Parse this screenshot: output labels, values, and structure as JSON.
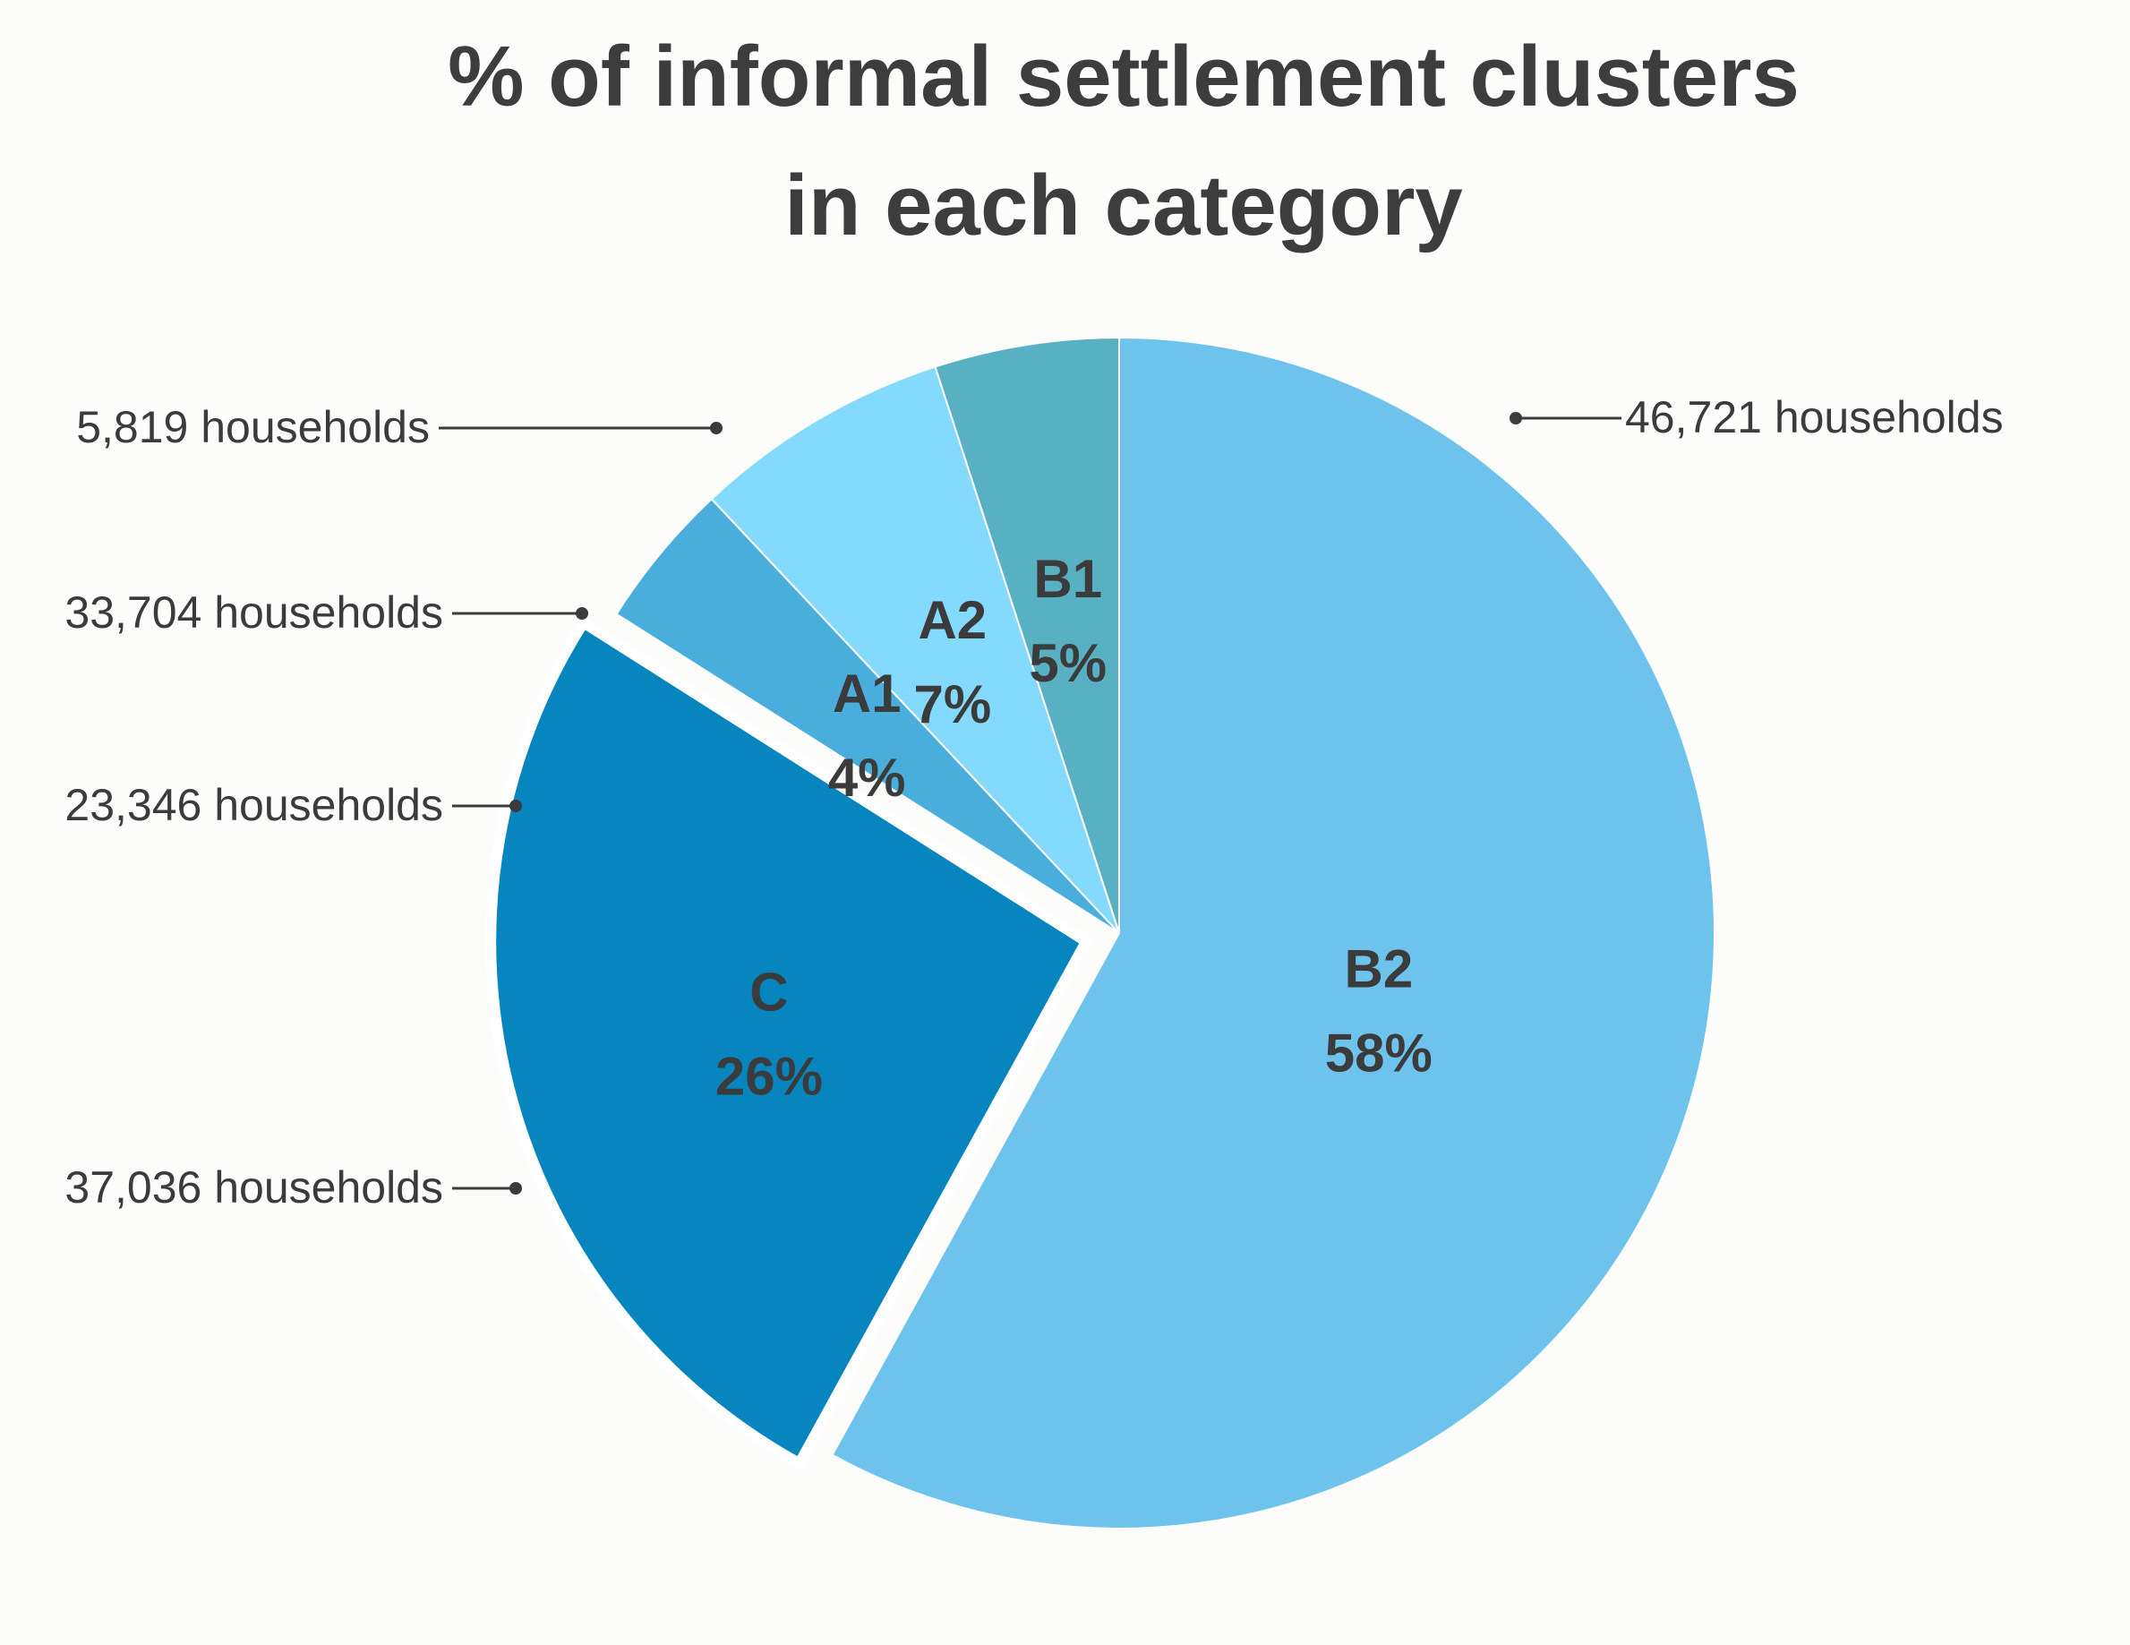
{
  "chart_data": {
    "type": "pie",
    "title_lines": [
      "% of informal settlement clusters",
      "in each category"
    ],
    "slices": [
      {
        "label": "B2",
        "value": 58,
        "percent_label": "58%",
        "households": "46,721 households",
        "color": "#6dc3ec",
        "exploded": false
      },
      {
        "label": "C",
        "value": 26,
        "percent_label": "26%",
        "households": "37,036 households",
        "color": "#0685bf",
        "exploded": true
      },
      {
        "label": "A1",
        "value": 4,
        "percent_label": "4%",
        "households": "23,346 households",
        "color": "#4aaedd",
        "exploded": false
      },
      {
        "label": "A2",
        "value": 7,
        "percent_label": "7%",
        "households": "33,704 households",
        "color": "#84dafc",
        "exploded": false
      },
      {
        "label": "B1",
        "value": 5,
        "percent_label": "5%",
        "households": "5,819 households",
        "color": "#58b0c3",
        "exploded": false
      }
    ],
    "start_angle_deg": 0,
    "direction": "clockwise",
    "legend": "none"
  }
}
